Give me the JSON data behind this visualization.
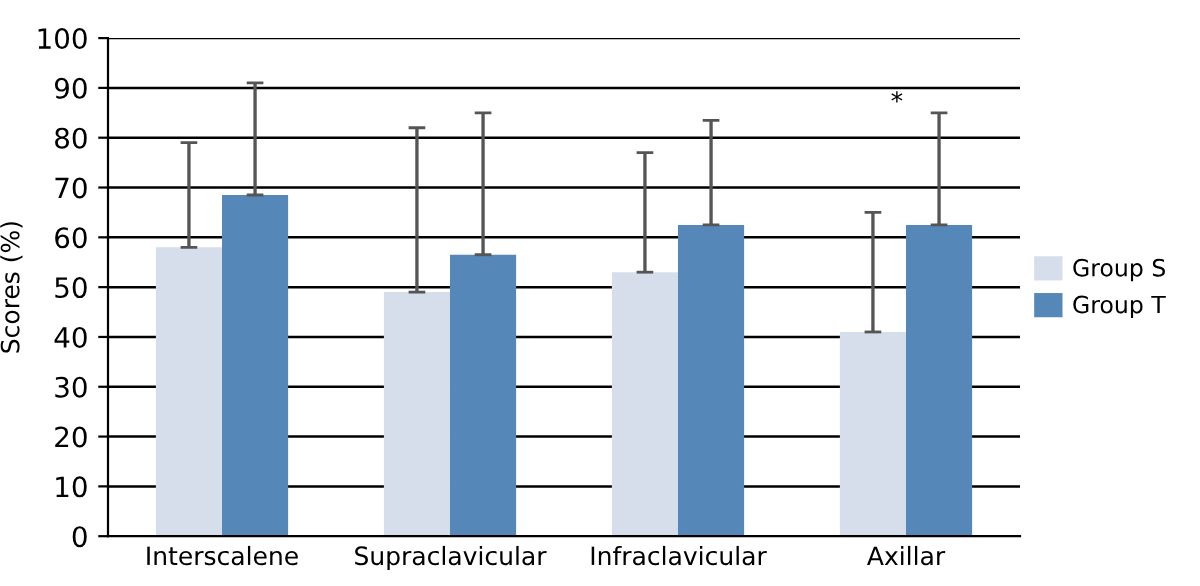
{
  "chart_data": {
    "type": "bar",
    "ylabel": "Scores (%)",
    "categories": [
      "Interscalene",
      "Supraclavicular",
      "Infraclavicular",
      "Axillar"
    ],
    "series": [
      {
        "name": "Group S",
        "color": "#d5deea",
        "values": [
          58,
          49,
          53,
          41
        ],
        "errors": [
          [
            58,
            79
          ],
          [
            49,
            82
          ],
          [
            53,
            77
          ],
          [
            41,
            65
          ]
        ]
      },
      {
        "name": "Group T",
        "color": "#5588b8",
        "values": [
          68.5,
          56.5,
          62.5,
          62.5
        ],
        "errors": [
          [
            68.5,
            91
          ],
          [
            56.5,
            85
          ],
          [
            62.5,
            83.5
          ],
          [
            62.5,
            85
          ]
        ]
      }
    ],
    "annotations": [
      "*"
    ],
    "ylim": [
      0,
      100
    ],
    "yticks": [
      0,
      10,
      20,
      30,
      40,
      50,
      60,
      70,
      80,
      90,
      100
    ],
    "grid": "y",
    "legend": "right"
  }
}
